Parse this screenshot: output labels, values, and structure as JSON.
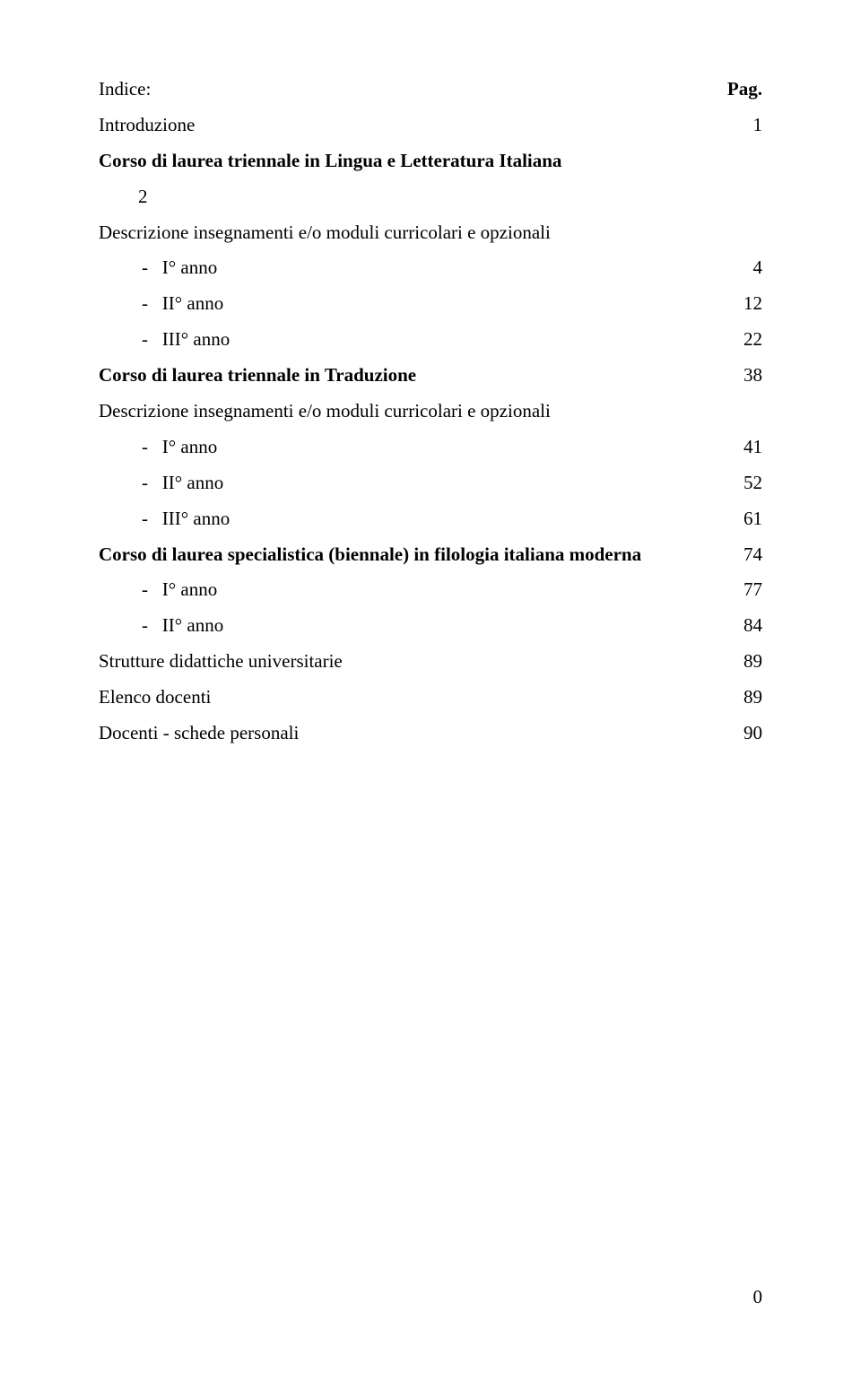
{
  "header_left": "Indice:",
  "header_right": "Pag.",
  "lines": [
    {
      "left": "Introduzione",
      "right": "1",
      "bold": false,
      "indent": 0
    },
    {
      "left": "Corso di laurea triennale in Lingua e Letteratura Italiana",
      "right": "",
      "bold": true,
      "indent": 0
    },
    {
      "left": "2",
      "right": "",
      "bold": false,
      "indent": 1
    },
    {
      "left": "Descrizione insegnamenti e/o moduli curricolari e opzionali",
      "right": "",
      "bold": false,
      "indent": 0
    },
    {
      "left": "-   I° anno",
      "right": "4",
      "bold": false,
      "indent": 0,
      "bullet": true
    },
    {
      "left": "-   II° anno",
      "right": "12",
      "bold": false,
      "indent": 0,
      "bullet": true
    },
    {
      "left": "-   III° anno",
      "right": "22",
      "bold": false,
      "indent": 0,
      "bullet": true
    },
    {
      "left": "Corso di laurea triennale in Traduzione",
      "right": "38",
      "bold": true,
      "indent": 0
    },
    {
      "left": "Descrizione insegnamenti e/o moduli curricolari e opzionali",
      "right": "",
      "bold": false,
      "indent": 0
    },
    {
      "left": "-   I° anno",
      "right": "41",
      "bold": false,
      "indent": 0,
      "bullet": true
    },
    {
      "left": "-   II° anno",
      "right": "52",
      "bold": false,
      "indent": 0,
      "bullet": true
    },
    {
      "left": "-   III° anno",
      "right": "61",
      "bold": false,
      "indent": 0,
      "bullet": true
    },
    {
      "left": "Corso di laurea specialistica (biennale) in filologia italiana moderna",
      "right": "74",
      "bold": true,
      "indent": 0
    },
    {
      "left": "-   I° anno",
      "right": "77",
      "bold": false,
      "indent": 0,
      "bullet": true
    },
    {
      "left": "-   II° anno",
      "right": "84",
      "bold": false,
      "indent": 0,
      "bullet": true
    },
    {
      "left": "Strutture didattiche universitarie",
      "right": "89",
      "bold": false,
      "indent": 0
    },
    {
      "left": "Elenco docenti",
      "right": "89",
      "bold": false,
      "indent": 0
    },
    {
      "left": "Docenti - schede personali",
      "right": "90",
      "bold": false,
      "indent": 0
    }
  ],
  "page_number": "0"
}
